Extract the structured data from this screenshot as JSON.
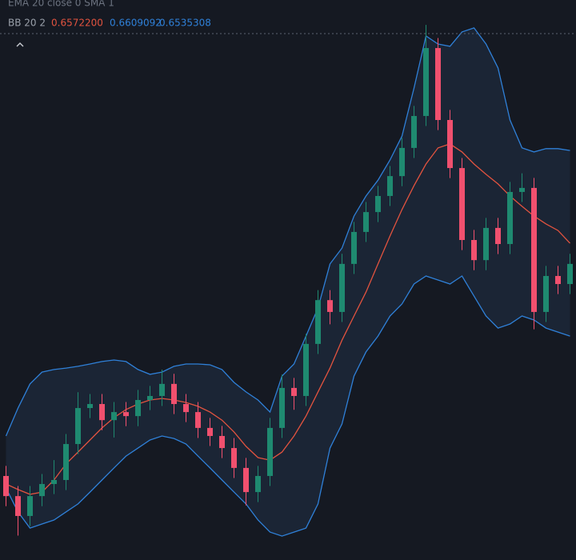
{
  "chart_data": {
    "type": "candlestick",
    "indicator_line": "EMA 20 close 0 SMA 1",
    "bb_legend": {
      "title": "BB 20 2",
      "values": [
        0.65722,
        0.6609092,
        0.6535308
      ],
      "value_labels": [
        "0.6572200",
        "0.6609092",
        "0.6535308"
      ]
    },
    "ylim": [
      0.64463,
      0.66689
    ],
    "up_color": "#1f8a70",
    "down_color": "#f0506e",
    "open": [
      0.64797,
      0.64717,
      0.64638,
      0.64717,
      0.64765,
      0.64781,
      0.64924,
      0.65067,
      0.65083,
      0.65019,
      0.65051,
      0.65035,
      0.65099,
      0.65115,
      0.65163,
      0.65083,
      0.65051,
      0.64988,
      0.64956,
      0.64908,
      0.64829,
      0.64733,
      0.64797,
      0.64988,
      0.65147,
      0.65115,
      0.65322,
      0.65496,
      0.65449,
      0.6564,
      0.65767,
      0.65846,
      0.6591,
      0.65989,
      0.66101,
      0.66228,
      0.66498,
      0.66212,
      0.66021,
      0.65735,
      0.65655,
      0.65783,
      0.65719,
      0.65926,
      0.65942,
      0.65449,
      0.65592,
      0.6556
    ],
    "close": [
      0.64717,
      0.64638,
      0.64717,
      0.64765,
      0.64781,
      0.64924,
      0.65067,
      0.65083,
      0.65019,
      0.65051,
      0.65035,
      0.65099,
      0.65115,
      0.65163,
      0.65083,
      0.65051,
      0.64988,
      0.64956,
      0.64908,
      0.64829,
      0.64733,
      0.64797,
      0.64988,
      0.65147,
      0.65115,
      0.65322,
      0.65496,
      0.65449,
      0.6564,
      0.65767,
      0.65846,
      0.6591,
      0.65989,
      0.66101,
      0.66228,
      0.66498,
      0.66212,
      0.66021,
      0.65735,
      0.65655,
      0.65783,
      0.65719,
      0.65926,
      0.65942,
      0.65449,
      0.65592,
      0.6556,
      0.6564
    ],
    "high": [
      0.64837,
      0.64757,
      0.64757,
      0.64805,
      0.6486,
      0.64964,
      0.6513,
      0.65123,
      0.65123,
      0.65091,
      0.65091,
      0.65139,
      0.65155,
      0.6522,
      0.65203,
      0.65123,
      0.65091,
      0.65028,
      0.64996,
      0.64948,
      0.64869,
      0.64837,
      0.65028,
      0.652,
      0.65187,
      0.65362,
      0.65536,
      0.65536,
      0.6568,
      0.65807,
      0.65886,
      0.6595,
      0.66029,
      0.66141,
      0.66268,
      0.6659,
      0.66538,
      0.66252,
      0.66061,
      0.65775,
      0.65823,
      0.65823,
      0.65966,
      0.66,
      0.65982,
      0.65632,
      0.65632,
      0.6568
    ],
    "low": [
      0.64677,
      0.6456,
      0.64598,
      0.64677,
      0.64725,
      0.64741,
      0.64884,
      0.65027,
      0.64979,
      0.6495,
      0.64995,
      0.64995,
      0.65059,
      0.65075,
      0.65043,
      0.65011,
      0.64948,
      0.64916,
      0.64868,
      0.64789,
      0.6468,
      0.64693,
      0.64757,
      0.64948,
      0.6506,
      0.65075,
      0.65282,
      0.654,
      0.65409,
      0.656,
      0.65727,
      0.65806,
      0.6587,
      0.65949,
      0.66061,
      0.66188,
      0.66172,
      0.65981,
      0.65695,
      0.65615,
      0.65615,
      0.65679,
      0.65679,
      0.65886,
      0.6538,
      0.65409,
      0.6552,
      0.6552
    ],
    "bands": {
      "upper_color": "#2f80d8",
      "basis_color": "#e2533f",
      "lower_color": "#2f80d8",
      "upper": [
        0.64956,
        0.65067,
        0.65163,
        0.6521,
        0.6522,
        0.65226,
        0.65233,
        0.65242,
        0.65252,
        0.65258,
        0.65252,
        0.6522,
        0.65201,
        0.6521,
        0.65233,
        0.65242,
        0.65242,
        0.65239,
        0.6522,
        0.65169,
        0.65131,
        0.65099,
        0.65051,
        0.65194,
        0.65242,
        0.65353,
        0.65465,
        0.6564,
        0.65703,
        0.6583,
        0.6591,
        0.65973,
        0.66053,
        0.66148,
        0.66339,
        0.66546,
        0.66514,
        0.66505,
        0.66562,
        0.66578,
        0.66514,
        0.66419,
        0.66212,
        0.66101,
        0.66085,
        0.66098,
        0.66098,
        0.66091
      ],
      "basis": [
        0.64765,
        0.64743,
        0.64724,
        0.64733,
        0.64781,
        0.64845,
        0.64892,
        0.6494,
        0.64988,
        0.65029,
        0.65061,
        0.65083,
        0.65099,
        0.65105,
        0.65099,
        0.65089,
        0.65074,
        0.65051,
        0.65019,
        0.64972,
        0.64915,
        0.6487,
        0.6486,
        0.64892,
        0.64956,
        0.65035,
        0.65131,
        0.65226,
        0.65337,
        0.65433,
        0.65528,
        0.6564,
        0.65751,
        0.65856,
        0.65951,
        0.66037,
        0.66101,
        0.66117,
        0.66085,
        0.66037,
        0.65996,
        0.65958,
        0.6591,
        0.65869,
        0.6583,
        0.65799,
        0.65773,
        0.65722
      ],
      "lower": [
        0.64749,
        0.64654,
        0.6459,
        0.64606,
        0.64622,
        0.64654,
        0.64686,
        0.64733,
        0.64781,
        0.64829,
        0.64876,
        0.64908,
        0.6494,
        0.64956,
        0.64946,
        0.64924,
        0.64876,
        0.64829,
        0.64781,
        0.64733,
        0.64686,
        0.64622,
        0.64574,
        0.64558,
        0.64574,
        0.6459,
        0.64686,
        0.64908,
        0.65004,
        0.65194,
        0.6529,
        0.65353,
        0.65433,
        0.65481,
        0.6556,
        0.65592,
        0.65576,
        0.6556,
        0.65592,
        0.65512,
        0.65433,
        0.65385,
        0.65401,
        0.65433,
        0.65417,
        0.65385,
        0.65369,
        0.65353
      ]
    }
  }
}
